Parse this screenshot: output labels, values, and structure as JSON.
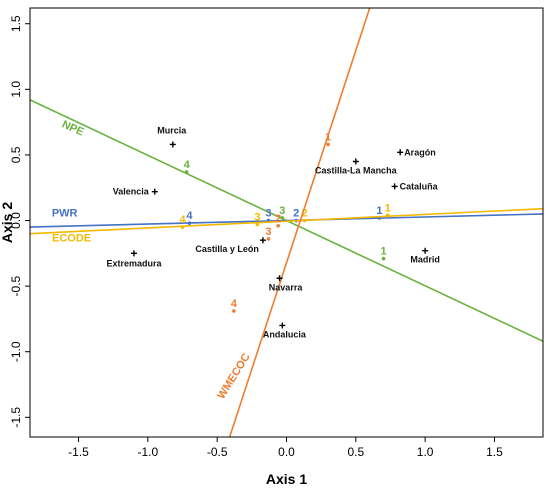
{
  "chart_data": {
    "type": "scatter",
    "title": "",
    "xlabel": "Axis 1",
    "ylabel": "Axis 2",
    "xlim": [
      -1.85,
      1.85
    ],
    "ylim": [
      -1.65,
      1.62
    ],
    "xticks": [
      "-1.5",
      "-1.0",
      "-0.5",
      "0.0",
      "0.5",
      "1.0",
      "1.5"
    ],
    "xtick_values": [
      -1.5,
      -1.0,
      -0.5,
      0.0,
      0.5,
      1.0,
      1.5
    ],
    "yticks": [
      "-1.5",
      "-1.0",
      "-0.5",
      "0.0",
      "0.5",
      "1.0",
      "1.5"
    ],
    "ytick_values": [
      -1.5,
      -1.0,
      -0.5,
      0.0,
      0.5,
      1.0,
      1.5
    ],
    "points": [
      {
        "label": "Murcia",
        "x": -0.82,
        "y": 0.58
      },
      {
        "label": "Aragón",
        "x": 0.82,
        "y": 0.52
      },
      {
        "label": "Castilla-La Mancha",
        "x": 0.5,
        "y": 0.45
      },
      {
        "label": "Cataluña",
        "x": 0.78,
        "y": 0.26
      },
      {
        "label": "Valencia",
        "x": -0.95,
        "y": 0.22
      },
      {
        "label": "Castilla y León",
        "x": -0.17,
        "y": -0.15
      },
      {
        "label": "Extremadura",
        "x": -1.1,
        "y": -0.25
      },
      {
        "label": "Madrid",
        "x": 1.0,
        "y": -0.23
      },
      {
        "label": "Navarra",
        "x": -0.05,
        "y": -0.44
      },
      {
        "label": "Andalucia",
        "x": -0.03,
        "y": -0.8
      }
    ],
    "biplot_axes": [
      {
        "name": "NPE",
        "color": "#6ab23e",
        "p1": [
          -1.85,
          0.92
        ],
        "p2": [
          1.85,
          -0.92
        ],
        "ticks": [
          {
            "label": "4",
            "x": -0.72,
            "y": 0.37
          },
          {
            "label": "3",
            "x": -0.03,
            "y": 0.02
          },
          {
            "label": "1",
            "x": 0.7,
            "y": -0.29
          }
        ]
      },
      {
        "name": "PWR",
        "color": "#4472c4",
        "p1": [
          -1.85,
          -0.05
        ],
        "p2": [
          1.85,
          0.05
        ],
        "ticks": [
          {
            "label": "4",
            "x": -0.7,
            "y": -0.02
          },
          {
            "label": "3",
            "x": -0.13,
            "y": 0.0
          },
          {
            "label": "2",
            "x": 0.07,
            "y": 0.0
          },
          {
            "label": "1",
            "x": 0.67,
            "y": 0.02
          }
        ]
      },
      {
        "name": "ECODE",
        "color": "#f5b800",
        "p1": [
          -1.85,
          -0.1
        ],
        "p2": [
          1.85,
          0.09
        ],
        "ticks": [
          {
            "label": "4",
            "x": -0.75,
            "y": -0.05
          },
          {
            "label": "3",
            "x": -0.21,
            "y": -0.03
          },
          {
            "label": "2",
            "x": 0.13,
            "y": 0.0
          },
          {
            "label": "1",
            "x": 0.73,
            "y": 0.04
          }
        ]
      },
      {
        "name": "WMECOC",
        "color": "#ed7d31",
        "p1": [
          -0.41,
          -1.65
        ],
        "p2": [
          0.6,
          1.62
        ],
        "ticks": [
          {
            "label": "4",
            "x": -0.38,
            "y": -0.69
          },
          {
            "label": "3",
            "x": -0.13,
            "y": -0.14
          },
          {
            "label": "2",
            "x": -0.06,
            "y": -0.04
          },
          {
            "label": "1",
            "x": 0.3,
            "y": 0.58
          }
        ]
      }
    ]
  }
}
